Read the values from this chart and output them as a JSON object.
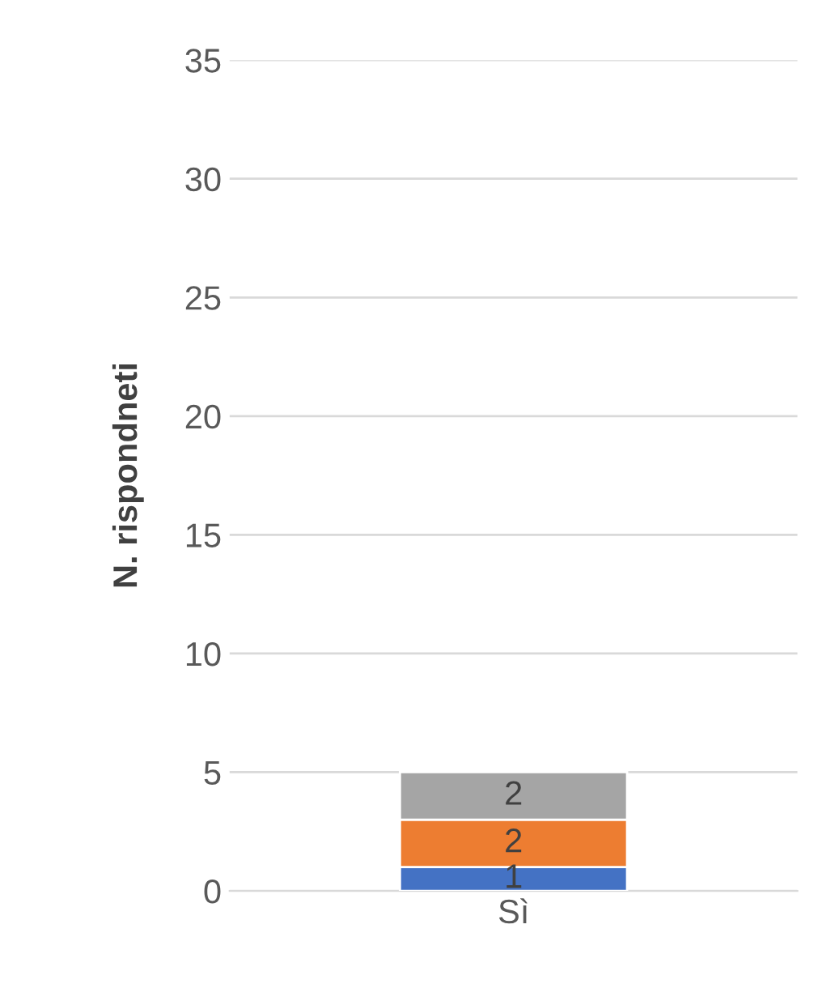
{
  "chart_data": {
    "type": "bar",
    "stacked": true,
    "ylabel": "N. rispondneti",
    "categories": [
      "Sì"
    ],
    "series": [
      {
        "color": "#4472c4",
        "values": [
          1
        ]
      },
      {
        "color": "#ed7d31",
        "values": [
          2
        ]
      },
      {
        "color": "#a5a5a5",
        "values": [
          2
        ]
      }
    ],
    "ylim": [
      0,
      35
    ],
    "yticks": [
      0,
      5,
      10,
      15,
      20,
      25,
      30,
      35
    ],
    "grid": "y",
    "data_labels": true
  }
}
